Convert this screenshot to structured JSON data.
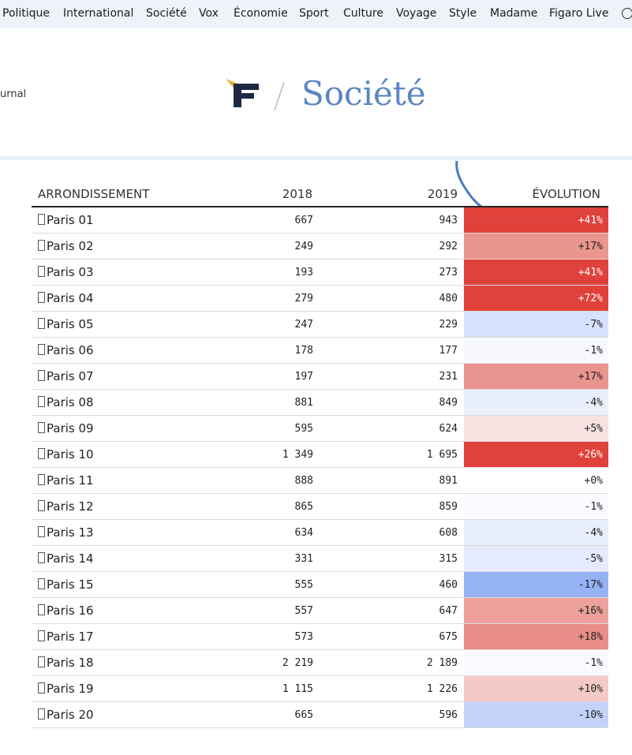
{
  "nav": {
    "items": [
      "Politique",
      "International",
      "Société",
      "Vox",
      "Économie",
      "Sport",
      "Culture",
      "Voyage",
      "Style",
      "Madame",
      "Figaro Live"
    ]
  },
  "header": {
    "left_text": "urnal",
    "section": "Société"
  },
  "table": {
    "columns": [
      "ARRONDISSEMENT",
      "2018",
      "2019",
      "ÉVOLUTION"
    ],
    "rows": [
      {
        "cells": [
          "Paris 01",
          "667",
          "943",
          "+41%"
        ],
        "color": "#e0413a"
      },
      {
        "cells": [
          "Paris 02",
          "249",
          "292",
          "+17%"
        ],
        "color": "#eb958f"
      },
      {
        "cells": [
          "Paris 03",
          "193",
          "273",
          "+41%"
        ],
        "color": "#e0413a"
      },
      {
        "cells": [
          "Paris 04",
          "279",
          "480",
          "+72%"
        ],
        "color": "#e0413a"
      },
      {
        "cells": [
          "Paris 05",
          "247",
          "229",
          "-7%"
        ],
        "color": "#d7e1fb"
      },
      {
        "cells": [
          "Paris 06",
          "178",
          "177",
          "-1%"
        ],
        "color": "#f8f9fe"
      },
      {
        "cells": [
          "Paris 07",
          "197",
          "231",
          "+17%"
        ],
        "color": "#ea9490"
      },
      {
        "cells": [
          "Paris 08",
          "881",
          "849",
          "-4%"
        ],
        "color": "#eaeffc"
      },
      {
        "cells": [
          "Paris 09",
          "595",
          "624",
          "+5%"
        ],
        "color": "#f8e2e1"
      },
      {
        "cells": [
          "Paris 10",
          "1 349",
          "1 695",
          "+26%"
        ],
        "color": "#e0413a"
      },
      {
        "cells": [
          "Paris 11",
          "888",
          "891",
          "+0%"
        ],
        "color": "#ffffff"
      },
      {
        "cells": [
          "Paris 12",
          "865",
          "859",
          "-1%"
        ],
        "color": "#f9fafe"
      },
      {
        "cells": [
          "Paris 13",
          "634",
          "608",
          "-4%"
        ],
        "color": "#e9eefc"
      },
      {
        "cells": [
          "Paris 14",
          "331",
          "315",
          "-5%"
        ],
        "color": "#e5ebfc"
      },
      {
        "cells": [
          "Paris 15",
          "555",
          "460",
          "-17%"
        ],
        "color": "#95b2f5"
      },
      {
        "cells": [
          "Paris 16",
          "557",
          "647",
          "+16%"
        ],
        "color": "#eda09c"
      },
      {
        "cells": [
          "Paris 17",
          "573",
          "675",
          "+18%"
        ],
        "color": "#e98d88"
      },
      {
        "cells": [
          "Paris 18",
          "2 219",
          "2 189",
          "-1%"
        ],
        "color": "#f9fafe"
      },
      {
        "cells": [
          "Paris 19",
          "1 115",
          "1 226",
          "+10%"
        ],
        "color": "#f4c9c6"
      },
      {
        "cells": [
          "Paris 20",
          "665",
          "596",
          "-10%"
        ],
        "color": "#c2d2f8"
      }
    ]
  }
}
